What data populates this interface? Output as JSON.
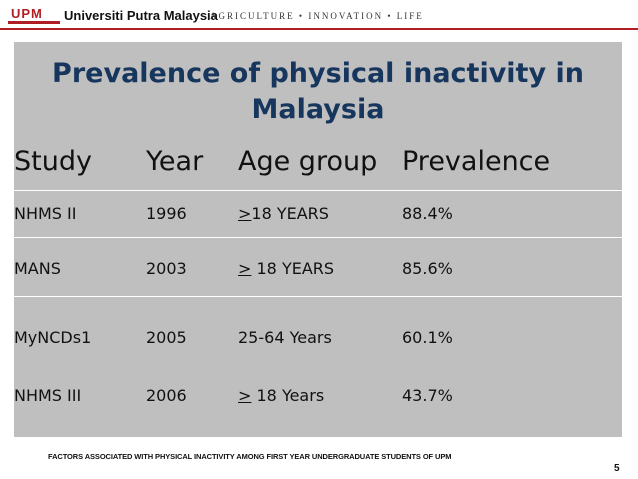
{
  "header": {
    "logo_text": "UPM",
    "university": "Universiti Putra Malaysia",
    "tagline": "AGRICULTURE • INNOVATION • LIFE"
  },
  "slide": {
    "title": "Prevalence of physical inactivity in Malaysia",
    "columns": [
      "Study",
      "Year",
      "Age group",
      "Prevalence"
    ],
    "rows": [
      {
        "study": "NHMS II",
        "year": "1996",
        "age_symbol": ">",
        "age_rest": "18 YEARS",
        "prevalence": "88.4%"
      },
      {
        "study": "MANS",
        "year": "2003",
        "age_symbol": ">",
        "age_rest": " 18 YEARS",
        "prevalence": "85.6%"
      },
      {
        "study": "MyNCDs1",
        "year": "2005",
        "age_symbol": "",
        "age_rest": "25-64 Years",
        "prevalence": "60.1%"
      },
      {
        "study": "NHMS III",
        "year": "2006",
        "age_symbol": ">",
        "age_rest": " 18 Years",
        "prevalence": "43.7%"
      }
    ]
  },
  "footer": {
    "text": "FACTORS ASSOCIATED WITH PHYSICAL INACTIVITY AMONG FIRST YEAR UNDERGRADUATE STUDENTS OF UPM",
    "page_number": "5"
  },
  "colors": {
    "brand_red": "#b01e23",
    "title_blue": "#17365d",
    "panel_gray": "#bfbfbf"
  }
}
